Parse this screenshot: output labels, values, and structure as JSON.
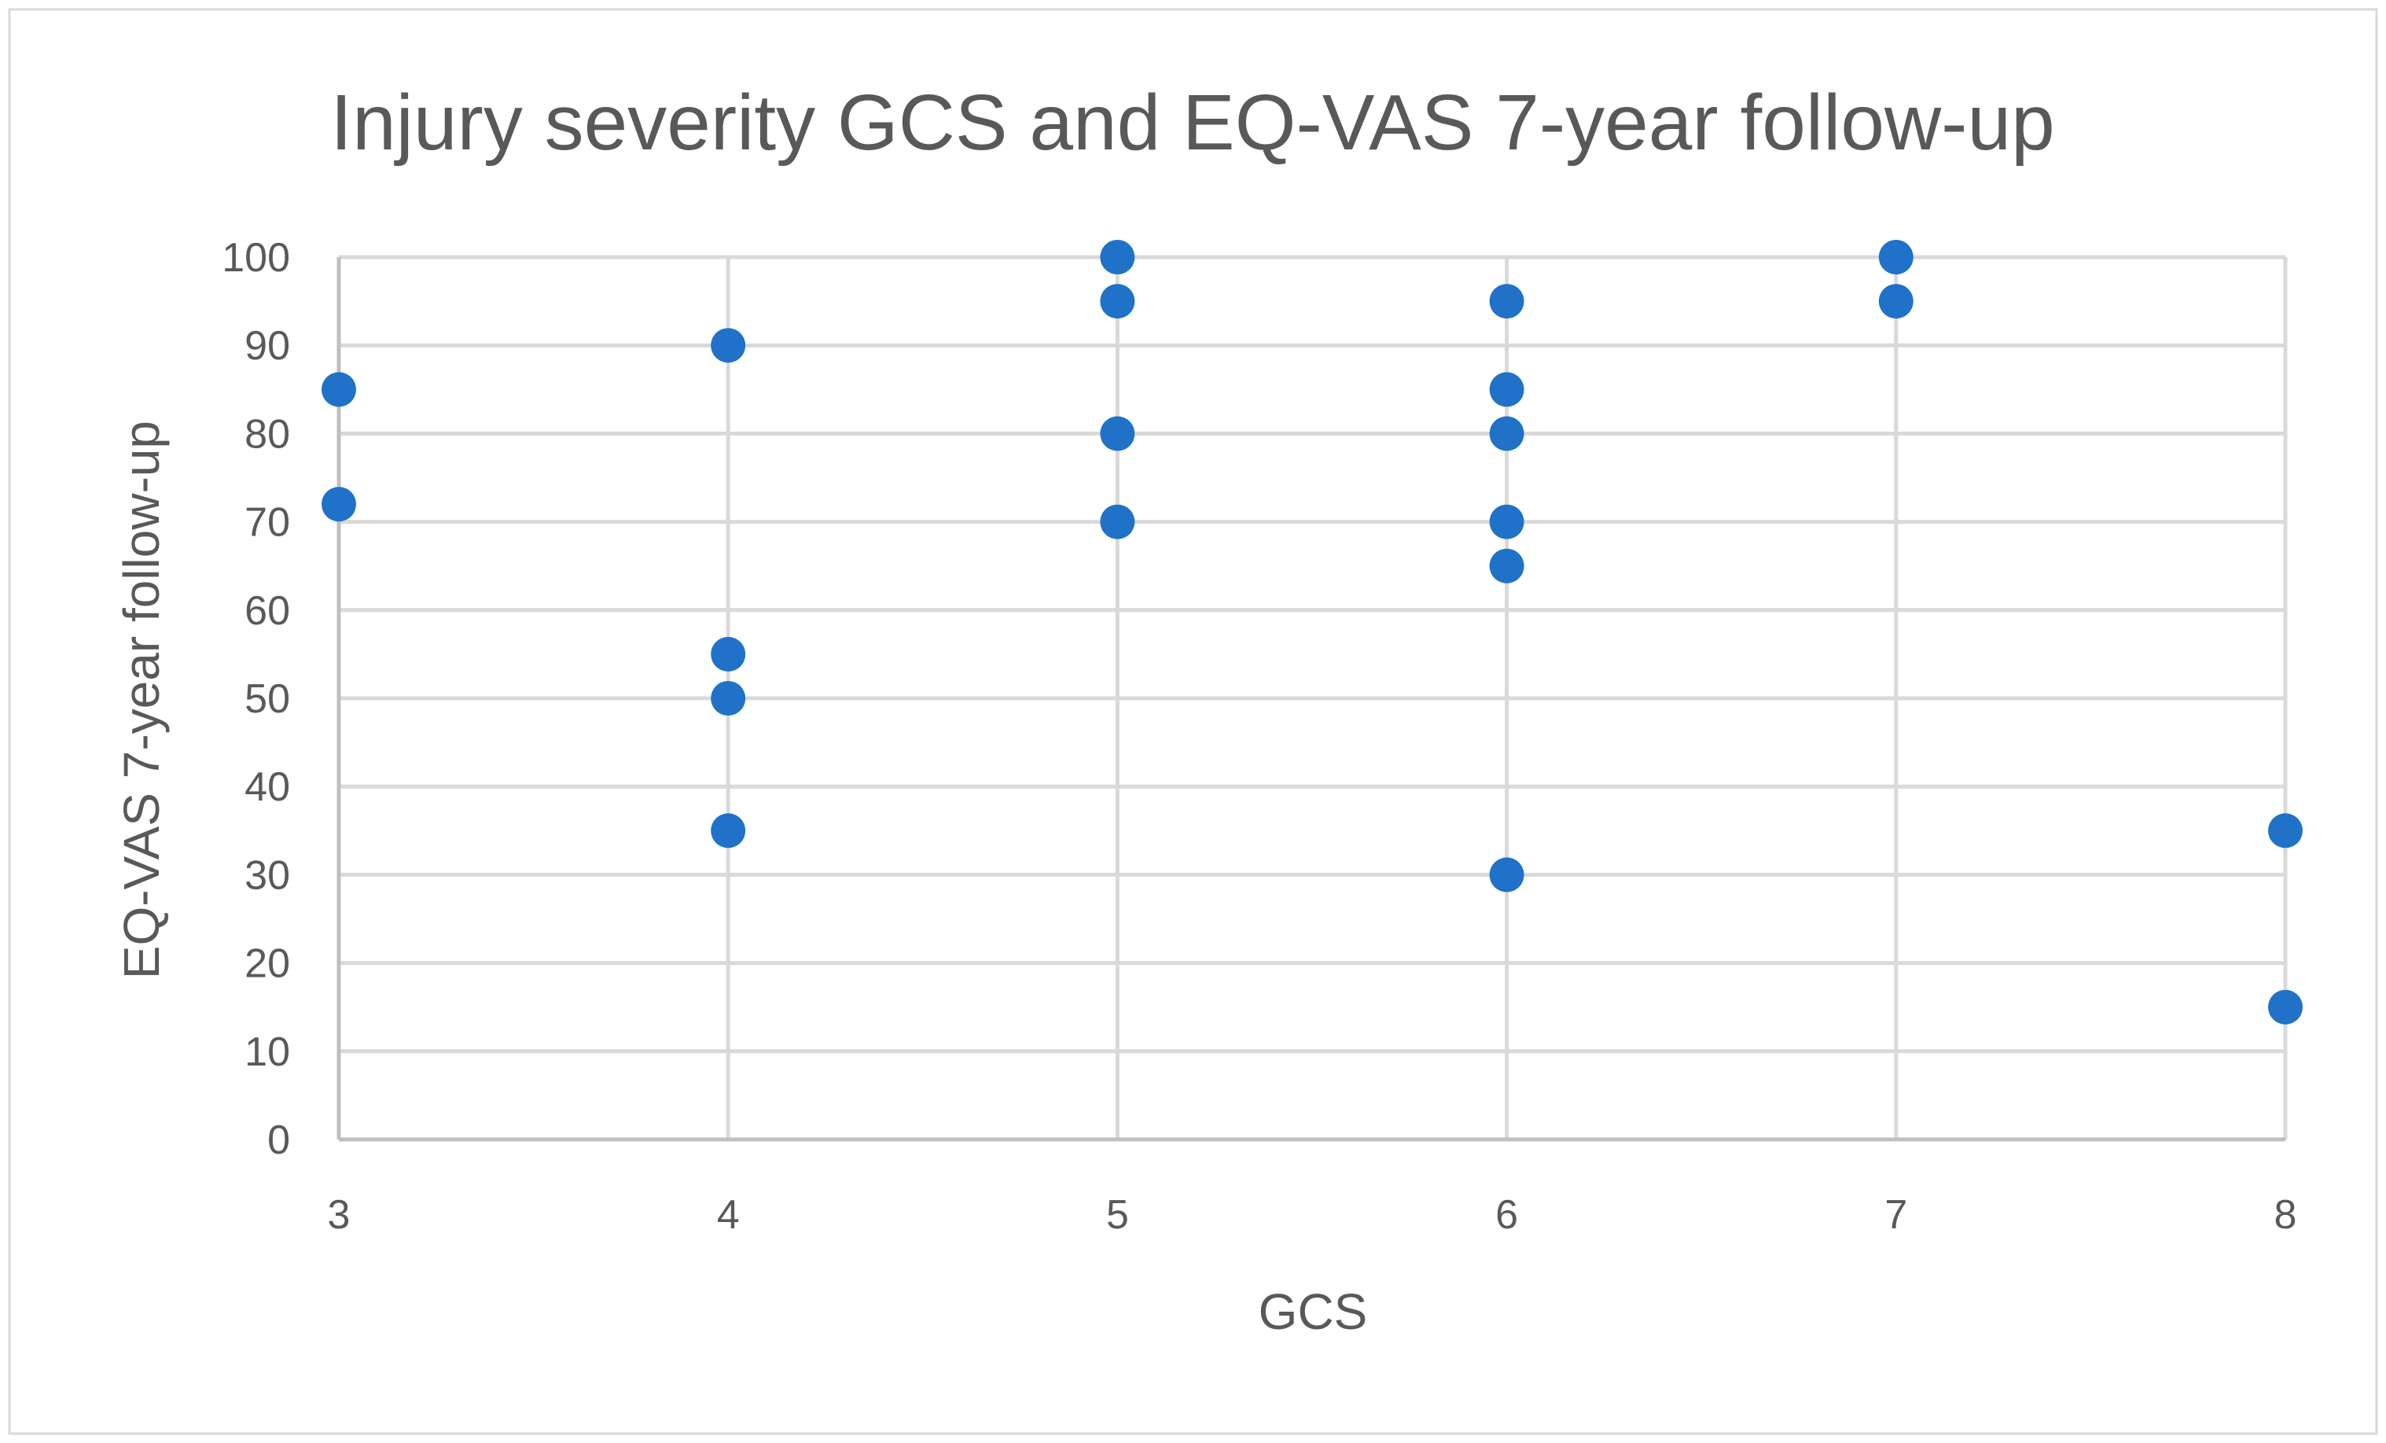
{
  "chart_data": {
    "type": "scatter",
    "title": "Injury severity GCS and EQ-VAS 7-year follow-up",
    "xlabel": "GCS",
    "ylabel": "EQ-VAS 7-year follow-up",
    "xlim": [
      3,
      8
    ],
    "ylim": [
      0,
      100
    ],
    "x_ticks": [
      "3",
      "4",
      "5",
      "6",
      "7",
      "8"
    ],
    "y_ticks": [
      "0",
      "10",
      "20",
      "30",
      "40",
      "50",
      "60",
      "70",
      "80",
      "90",
      "100"
    ],
    "grid": true,
    "legend": "none",
    "marker_color": "#1f72c8",
    "series": [
      {
        "name": "EQ-VAS 7-year follow-up",
        "points": [
          {
            "x": 3,
            "y": 85
          },
          {
            "x": 3,
            "y": 72
          },
          {
            "x": 4,
            "y": 90
          },
          {
            "x": 4,
            "y": 55
          },
          {
            "x": 4,
            "y": 50
          },
          {
            "x": 4,
            "y": 35
          },
          {
            "x": 5,
            "y": 100
          },
          {
            "x": 5,
            "y": 95
          },
          {
            "x": 5,
            "y": 80
          },
          {
            "x": 5,
            "y": 70
          },
          {
            "x": 6,
            "y": 95
          },
          {
            "x": 6,
            "y": 85
          },
          {
            "x": 6,
            "y": 80
          },
          {
            "x": 6,
            "y": 70
          },
          {
            "x": 6,
            "y": 65
          },
          {
            "x": 6,
            "y": 30
          },
          {
            "x": 7,
            "y": 100
          },
          {
            "x": 7,
            "y": 95
          },
          {
            "x": 8,
            "y": 35
          },
          {
            "x": 8,
            "y": 15
          }
        ]
      }
    ]
  }
}
